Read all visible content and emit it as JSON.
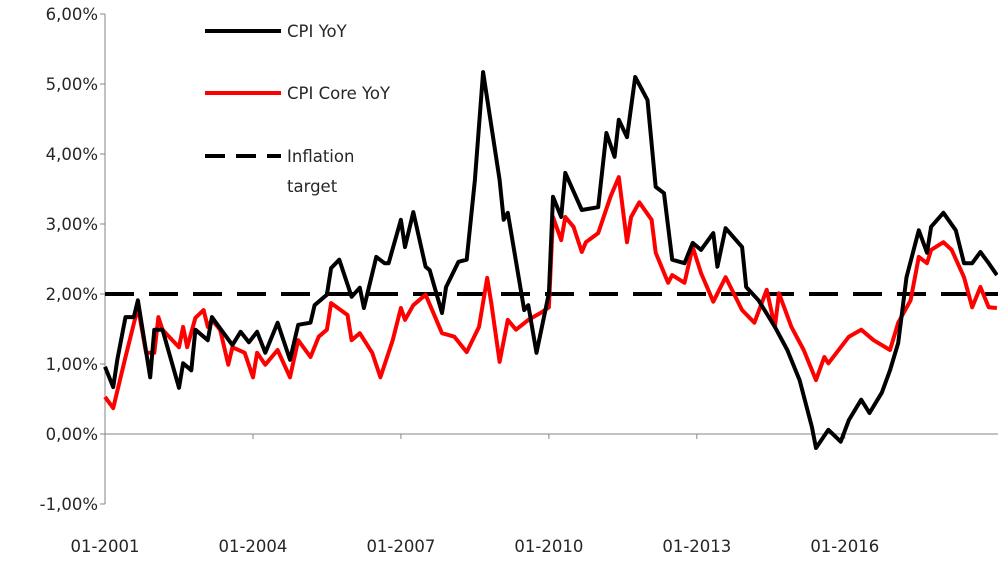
{
  "chart_data": {
    "type": "line",
    "title": "",
    "xlabel": "",
    "ylabel": "",
    "x_range": [
      "2001-01",
      "2019-02"
    ],
    "ylim": [
      -1,
      6
    ],
    "y_ticks": [
      -1,
      0,
      1,
      2,
      3,
      4,
      5,
      6
    ],
    "y_tick_labels": [
      "-1,00%",
      "0,00%",
      "1,00%",
      "2,00%",
      "3,00%",
      "4,00%",
      "5,00%",
      "6,00%"
    ],
    "x_ticks": [
      "2001-01",
      "2004-01",
      "2007-01",
      "2010-01",
      "2013-01",
      "2016-01"
    ],
    "x_tick_labels": [
      "01-2001",
      "01-2004",
      "01-2007",
      "01-2010",
      "01-2013",
      "01-2016"
    ],
    "grid": false,
    "legend_position": "top-left",
    "series": [
      {
        "name": "CPI YoY",
        "color": "#000000",
        "style": "solid",
        "points": [
          [
            "2001-01",
            0.96
          ],
          [
            "2001-03",
            0.67
          ],
          [
            "2001-04",
            1.06
          ],
          [
            "2001-06",
            1.67
          ],
          [
            "2001-08",
            1.67
          ],
          [
            "2001-09",
            1.91
          ],
          [
            "2001-12",
            0.81
          ],
          [
            "2002-01",
            1.49
          ],
          [
            "2002-03",
            1.49
          ],
          [
            "2002-07",
            0.66
          ],
          [
            "2002-08",
            1.01
          ],
          [
            "2002-10",
            0.91
          ],
          [
            "2002-11",
            1.49
          ],
          [
            "2003-02",
            1.34
          ],
          [
            "2003-03",
            1.67
          ],
          [
            "2003-04",
            1.59
          ],
          [
            "2003-08",
            1.27
          ],
          [
            "2003-10",
            1.46
          ],
          [
            "2003-12",
            1.31
          ],
          [
            "2004-02",
            1.46
          ],
          [
            "2004-04",
            1.16
          ],
          [
            "2004-07",
            1.59
          ],
          [
            "2004-10",
            1.06
          ],
          [
            "2004-12",
            1.56
          ],
          [
            "2005-03",
            1.59
          ],
          [
            "2005-04",
            1.84
          ],
          [
            "2005-07",
            1.99
          ],
          [
            "2005-08",
            2.37
          ],
          [
            "2005-10",
            2.49
          ],
          [
            "2006-01",
            1.96
          ],
          [
            "2006-03",
            2.09
          ],
          [
            "2006-04",
            1.8
          ],
          [
            "2006-07",
            2.53
          ],
          [
            "2006-09",
            2.44
          ],
          [
            "2006-10",
            2.44
          ],
          [
            "2007-01",
            3.06
          ],
          [
            "2007-02",
            2.67
          ],
          [
            "2007-04",
            3.17
          ],
          [
            "2007-07",
            2.39
          ],
          [
            "2007-08",
            2.34
          ],
          [
            "2007-11",
            1.73
          ],
          [
            "2007-12",
            2.1
          ],
          [
            "2008-03",
            2.46
          ],
          [
            "2008-05",
            2.49
          ],
          [
            "2008-07",
            3.63
          ],
          [
            "2008-09",
            5.17
          ],
          [
            "2009-01",
            3.63
          ],
          [
            "2009-02",
            3.06
          ],
          [
            "2009-03",
            3.16
          ],
          [
            "2009-07",
            1.77
          ],
          [
            "2009-08",
            1.84
          ],
          [
            "2009-10",
            1.16
          ],
          [
            "2010-01",
            2.01
          ],
          [
            "2010-02",
            3.39
          ],
          [
            "2010-04",
            3.1
          ],
          [
            "2010-05",
            3.73
          ],
          [
            "2010-09",
            3.2
          ],
          [
            "2011-01",
            3.24
          ],
          [
            "2011-03",
            4.3
          ],
          [
            "2011-05",
            3.96
          ],
          [
            "2011-06",
            4.49
          ],
          [
            "2011-08",
            4.24
          ],
          [
            "2011-10",
            5.1
          ],
          [
            "2012-01",
            4.77
          ],
          [
            "2012-03",
            3.53
          ],
          [
            "2012-05",
            3.44
          ],
          [
            "2012-07",
            2.49
          ],
          [
            "2012-10",
            2.44
          ],
          [
            "2012-12",
            2.73
          ],
          [
            "2013-02",
            2.63
          ],
          [
            "2013-05",
            2.87
          ],
          [
            "2013-06",
            2.39
          ],
          [
            "2013-08",
            2.94
          ],
          [
            "2013-12",
            2.67
          ],
          [
            "2014-01",
            2.1
          ],
          [
            "2014-04",
            1.91
          ],
          [
            "2014-08",
            1.53
          ],
          [
            "2014-11",
            1.2
          ],
          [
            "2015-02",
            0.77
          ],
          [
            "2015-05",
            0.1
          ],
          [
            "2015-06",
            -0.2
          ],
          [
            "2015-09",
            0.06
          ],
          [
            "2015-12",
            -0.11
          ],
          [
            "2016-02",
            0.2
          ],
          [
            "2016-05",
            0.49
          ],
          [
            "2016-07",
            0.3
          ],
          [
            "2016-10",
            0.59
          ],
          [
            "2016-12",
            0.91
          ],
          [
            "2017-02",
            1.3
          ],
          [
            "2017-04",
            2.24
          ],
          [
            "2017-07",
            2.91
          ],
          [
            "2017-09",
            2.59
          ],
          [
            "2017-10",
            2.96
          ],
          [
            "2018-01",
            3.16
          ],
          [
            "2018-04",
            2.91
          ],
          [
            "2018-06",
            2.44
          ],
          [
            "2018-08",
            2.44
          ],
          [
            "2018-10",
            2.6
          ],
          [
            "2018-12",
            2.44
          ],
          [
            "2019-02",
            2.27
          ]
        ]
      },
      {
        "name": "CPI Core YoY",
        "color": "#ff0000",
        "style": "solid",
        "points": [
          [
            "2001-01",
            0.53
          ],
          [
            "2001-03",
            0.37
          ],
          [
            "2001-06",
            1.1
          ],
          [
            "2001-09",
            1.81
          ],
          [
            "2001-11",
            1.16
          ],
          [
            "2002-01",
            1.16
          ],
          [
            "2002-02",
            1.67
          ],
          [
            "2002-03",
            1.49
          ],
          [
            "2002-07",
            1.24
          ],
          [
            "2002-08",
            1.53
          ],
          [
            "2002-09",
            1.24
          ],
          [
            "2002-11",
            1.66
          ],
          [
            "2003-01",
            1.77
          ],
          [
            "2003-02",
            1.53
          ],
          [
            "2003-03",
            1.63
          ],
          [
            "2003-05",
            1.49
          ],
          [
            "2003-07",
            0.99
          ],
          [
            "2003-08",
            1.24
          ],
          [
            "2003-11",
            1.16
          ],
          [
            "2004-01",
            0.81
          ],
          [
            "2004-02",
            1.16
          ],
          [
            "2004-04",
            0.99
          ],
          [
            "2004-07",
            1.2
          ],
          [
            "2004-10",
            0.81
          ],
          [
            "2004-12",
            1.34
          ],
          [
            "2005-03",
            1.1
          ],
          [
            "2005-05",
            1.39
          ],
          [
            "2005-07",
            1.49
          ],
          [
            "2005-08",
            1.87
          ],
          [
            "2005-12",
            1.7
          ],
          [
            "2006-01",
            1.34
          ],
          [
            "2006-03",
            1.44
          ],
          [
            "2006-06",
            1.16
          ],
          [
            "2006-08",
            0.81
          ],
          [
            "2006-11",
            1.34
          ],
          [
            "2007-01",
            1.8
          ],
          [
            "2007-02",
            1.63
          ],
          [
            "2007-04",
            1.84
          ],
          [
            "2007-07",
            1.99
          ],
          [
            "2007-11",
            1.44
          ],
          [
            "2008-02",
            1.39
          ],
          [
            "2008-05",
            1.17
          ],
          [
            "2008-08",
            1.53
          ],
          [
            "2008-10",
            2.23
          ],
          [
            "2008-11",
            1.87
          ],
          [
            "2009-01",
            1.03
          ],
          [
            "2009-03",
            1.63
          ],
          [
            "2009-05",
            1.49
          ],
          [
            "2009-08",
            1.63
          ],
          [
            "2009-11",
            1.73
          ],
          [
            "2010-01",
            1.81
          ],
          [
            "2010-02",
            3.1
          ],
          [
            "2010-04",
            2.77
          ],
          [
            "2010-05",
            3.1
          ],
          [
            "2010-07",
            2.96
          ],
          [
            "2010-09",
            2.6
          ],
          [
            "2010-10",
            2.74
          ],
          [
            "2011-01",
            2.87
          ],
          [
            "2011-04",
            3.39
          ],
          [
            "2011-06",
            3.67
          ],
          [
            "2011-08",
            2.74
          ],
          [
            "2011-09",
            3.1
          ],
          [
            "2011-11",
            3.31
          ],
          [
            "2012-02",
            3.06
          ],
          [
            "2012-03",
            2.59
          ],
          [
            "2012-06",
            2.16
          ],
          [
            "2012-07",
            2.27
          ],
          [
            "2012-10",
            2.16
          ],
          [
            "2012-12",
            2.67
          ],
          [
            "2013-02",
            2.3
          ],
          [
            "2013-05",
            1.89
          ],
          [
            "2013-08",
            2.24
          ],
          [
            "2013-12",
            1.77
          ],
          [
            "2014-03",
            1.59
          ],
          [
            "2014-06",
            2.06
          ],
          [
            "2014-08",
            1.53
          ],
          [
            "2014-09",
            2.01
          ],
          [
            "2014-12",
            1.53
          ],
          [
            "2015-03",
            1.2
          ],
          [
            "2015-06",
            0.77
          ],
          [
            "2015-08",
            1.1
          ],
          [
            "2015-09",
            1.01
          ],
          [
            "2016-02",
            1.39
          ],
          [
            "2016-05",
            1.49
          ],
          [
            "2016-08",
            1.34
          ],
          [
            "2016-12",
            1.2
          ],
          [
            "2017-02",
            1.59
          ],
          [
            "2017-05",
            1.91
          ],
          [
            "2017-07",
            2.53
          ],
          [
            "2017-09",
            2.44
          ],
          [
            "2017-10",
            2.63
          ],
          [
            "2018-01",
            2.74
          ],
          [
            "2018-03",
            2.63
          ],
          [
            "2018-06",
            2.24
          ],
          [
            "2018-08",
            1.81
          ],
          [
            "2018-10",
            2.1
          ],
          [
            "2018-12",
            1.81
          ],
          [
            "2019-02",
            1.8
          ]
        ]
      },
      {
        "name": "Inflation target",
        "name_lines": [
          "Inflation",
          "target"
        ],
        "color": "#000000",
        "style": "dashed",
        "points": [
          [
            "2001-01",
            2.0
          ],
          [
            "2019-02",
            2.0
          ]
        ]
      }
    ]
  }
}
